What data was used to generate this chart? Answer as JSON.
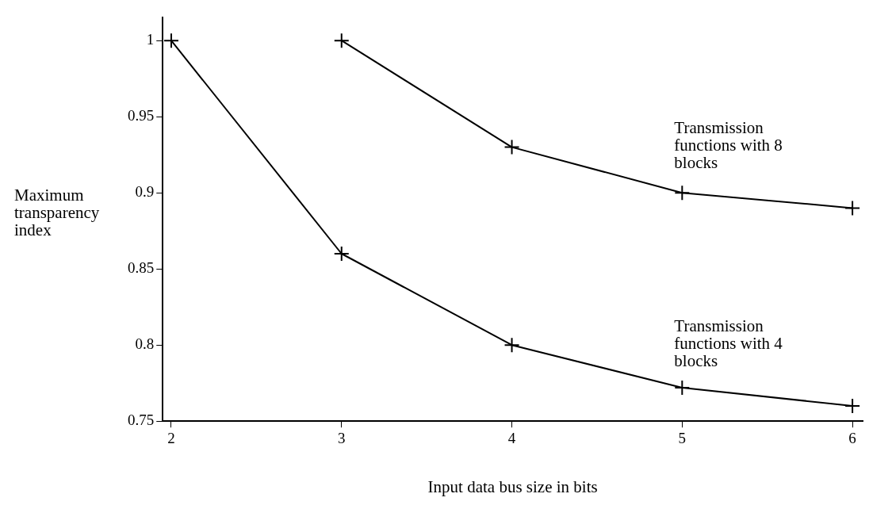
{
  "chart_data": {
    "type": "line",
    "xlabel": "Input data bus size in bits",
    "ylabel": "Maximum transparency index",
    "xlim": [
      1.95,
      6.06
    ],
    "ylim": [
      0.75,
      1.015
    ],
    "xticks": [
      2,
      3,
      4,
      5,
      6
    ],
    "yticks": [
      0.75,
      0.8,
      0.85,
      0.9,
      0.95,
      1
    ],
    "grid": false,
    "legend": false,
    "marker": "cross",
    "line_style": "solid",
    "series": [
      {
        "name": "Transmission functions with 8 blocks",
        "color": "#000000",
        "x": [
          3,
          4,
          5,
          6
        ],
        "values": [
          1,
          0.93,
          0.9,
          0.89
        ]
      },
      {
        "name": "Transmission functions with 4 blocks",
        "color": "#000000",
        "x": [
          2,
          3,
          4,
          5,
          6
        ],
        "values": [
          1,
          0.86,
          0.8,
          0.772,
          0.76
        ]
      }
    ]
  }
}
